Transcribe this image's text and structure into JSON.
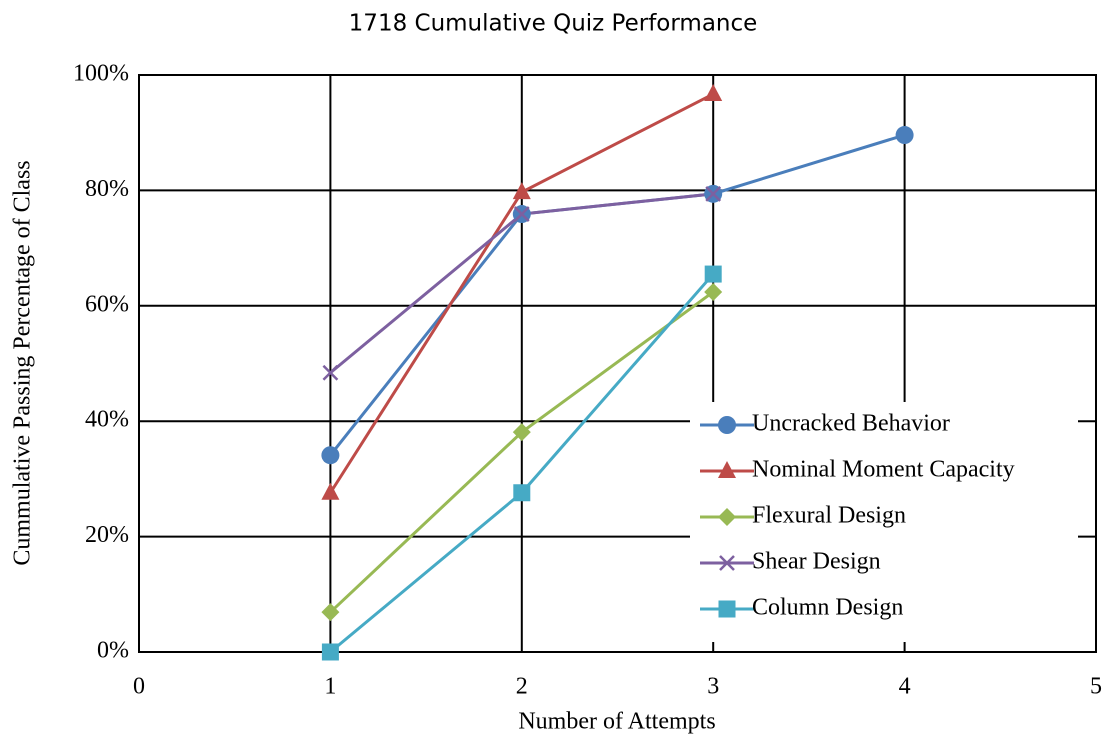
{
  "chart_data": {
    "type": "line",
    "title": "1718 Cumulative Quiz Performance",
    "x_label": "Number of Attempts",
    "y_label": "Cummulative  Passing Percentage of Class",
    "x": [
      1,
      2,
      3,
      4
    ],
    "series": [
      {
        "name": "Uncracked Behavior",
        "color": "#4a7ebb",
        "marker": "circle",
        "values": [
          34.1,
          75.9,
          79.4,
          89.6
        ]
      },
      {
        "name": "Nominal Moment Capacity",
        "color": "#be4b48",
        "marker": "triangle",
        "values": [
          27.6,
          79.7,
          96.7,
          null
        ]
      },
      {
        "name": "Flexural Design",
        "color": "#98b954",
        "marker": "diamond",
        "values": [
          6.9,
          38.1,
          62.4,
          null
        ]
      },
      {
        "name": "Shear Design",
        "color": "#7d60a0",
        "marker": "x",
        "values": [
          48.4,
          75.9,
          79.4,
          null
        ]
      },
      {
        "name": "Column Design",
        "color": "#46aac5",
        "marker": "square",
        "values": [
          0,
          27.6,
          65.5,
          null
        ]
      }
    ],
    "xlim": [
      0,
      5
    ],
    "xticks": [
      0,
      1,
      2,
      3,
      4,
      5
    ],
    "ylim": [
      0,
      100
    ],
    "yticks": [
      {
        "value": 0,
        "label": "0%"
      },
      {
        "value": 20,
        "label": "20%"
      },
      {
        "value": 40,
        "label": "40%"
      },
      {
        "value": 60,
        "label": "60%"
      },
      {
        "value": 80,
        "label": "80%"
      },
      {
        "value": 100,
        "label": "100%"
      }
    ],
    "grid": true,
    "legend_position": "lower right"
  }
}
